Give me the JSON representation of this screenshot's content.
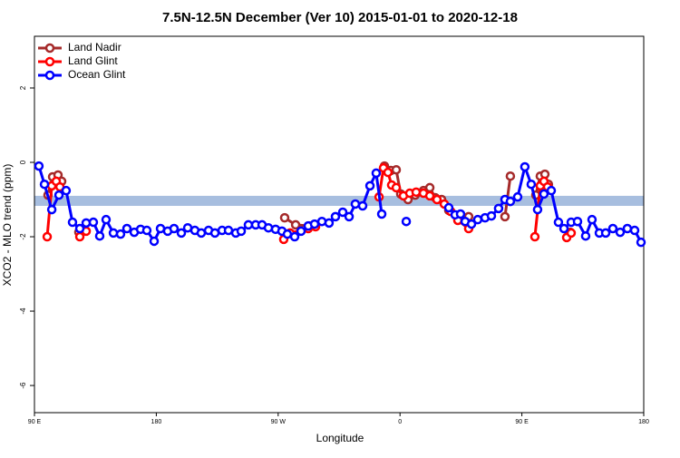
{
  "chart_data": {
    "type": "line",
    "title": "7.5N-12.5N December (Ver 10)   2015-01-01 to 2020-12-18",
    "x_label": "Longitude",
    "y_label": "XCO2 - MLO trend (ppm)",
    "xlim": [
      90,
      540
    ],
    "xticks": [
      {
        "value": 90,
        "label": "90 E"
      },
      {
        "value": 180,
        "label": "180"
      },
      {
        "value": 270,
        "label": "90 W"
      },
      {
        "value": 360,
        "label": "0"
      },
      {
        "value": 450,
        "label": "90 E"
      },
      {
        "value": 540,
        "label": "180"
      }
    ],
    "ylim": [
      -6.73,
      3.39
    ],
    "yticks": [
      2,
      0,
      -2,
      -4,
      -6
    ],
    "legend": "top-left",
    "band": {
      "ylim": [
        -1.17,
        -0.9
      ],
      "color": "#a7bedf"
    },
    "series": [
      {
        "name": "Land Nadir",
        "color": "#a52a2a",
        "x": [
          100.0,
          103.4,
          107.4,
          110.1,
          null,
          122.8,
          126.8,
          null,
          274.8,
          282.9,
          292.9,
          297.6,
          null,
          348.5,
          353.2,
          357.2,
          360.5,
          365.9,
          371.2,
          377.3,
          382.0,
          386.0,
          390.7,
          396.0,
          402.7,
          410.7,
          null,
          437.5,
          441.5,
          null,
          460.3,
          463.6,
          467.0,
          469.6,
          null,
          485.7
        ],
        "values": [
          -0.88,
          -0.39,
          -0.34,
          -0.51,
          null,
          -1.88,
          -1.8,
          null,
          -1.49,
          -1.68,
          -1.71,
          -1.68,
          null,
          -0.1,
          -0.22,
          -0.2,
          -0.85,
          -1.0,
          -0.88,
          -0.76,
          -0.68,
          -0.95,
          -1.0,
          -1.29,
          -1.51,
          -1.46,
          null,
          -1.46,
          -0.37,
          null,
          -0.88,
          -0.37,
          -0.32,
          -0.59,
          null,
          -1.88
        ]
      },
      {
        "name": "Land Glint",
        "color": "#ff0000",
        "x": [
          99.4,
          102.8,
          106.1,
          108.8,
          null,
          123.5,
          128.2,
          null,
          274.1,
          278.8,
          292.2,
          297.6,
          null,
          344.5,
          347.8,
          351.1,
          353.8,
          357.2,
          362.5,
          367.2,
          371.9,
          377.3,
          382.0,
          387.3,
          392.7,
          397.4,
          402.7,
          410.7,
          null,
          459.6,
          463.6,
          466.3,
          469.0,
          null,
          483.1,
          486.4
        ],
        "values": [
          -2.0,
          -0.63,
          -0.51,
          -0.66,
          null,
          -2.0,
          -1.85,
          null,
          -2.07,
          -1.9,
          -1.78,
          -1.73,
          null,
          -0.93,
          -0.15,
          -0.27,
          -0.61,
          -0.68,
          -0.9,
          -0.83,
          -0.8,
          -0.83,
          -0.9,
          -1.0,
          -1.12,
          -1.32,
          -1.56,
          -1.78,
          null,
          -2.0,
          -0.63,
          -0.51,
          -0.66,
          null,
          -2.02,
          -1.9
        ]
      },
      {
        "name": "Ocean Glint",
        "color": "#0000ff",
        "x": [
          93.3,
          97.4,
          102.8,
          108.1,
          113.4,
          118.1,
          123.5,
          128.2,
          133.5,
          138.2,
          142.9,
          148.3,
          153.6,
          158.3,
          163.7,
          168.4,
          173.0,
          178.4,
          183.1,
          188.4,
          193.1,
          198.5,
          203.2,
          208.5,
          213.2,
          218.6,
          223.3,
          228.6,
          233.3,
          238.7,
          242.7,
          248.0,
          253.4,
          258.1,
          262.8,
          268.1,
          272.8,
          276.8,
          282.2,
          286.9,
          292.2,
          296.9,
          302.3,
          307.6,
          312.3,
          317.7,
          322.4,
          327.0,
          332.4,
          337.8,
          342.4,
          346.5,
          null,
          364.6,
          null,
          396.0,
          400.7,
          404.7,
          408.1,
          412.8,
          417.4,
          422.8,
          427.5,
          432.8,
          437.5,
          441.5,
          446.9,
          452.2,
          456.9,
          461.6,
          466.3,
          471.7,
          477.0,
          481.1,
          486.4,
          491.1,
          497.1,
          501.8,
          507.2,
          511.9,
          517.2,
          522.6,
          527.9,
          533.3,
          538.0
        ],
        "values": [
          -0.1,
          -0.59,
          -1.27,
          -0.88,
          -0.76,
          -1.61,
          -1.78,
          -1.63,
          -1.61,
          -1.98,
          -1.54,
          -1.9,
          -1.93,
          -1.78,
          -1.88,
          -1.8,
          -1.83,
          -2.12,
          -1.78,
          -1.85,
          -1.78,
          -1.9,
          -1.76,
          -1.83,
          -1.9,
          -1.83,
          -1.9,
          -1.83,
          -1.83,
          -1.9,
          -1.85,
          -1.68,
          -1.68,
          -1.68,
          -1.76,
          -1.8,
          -1.85,
          -1.93,
          -2.0,
          -1.85,
          -1.71,
          -1.66,
          -1.59,
          -1.63,
          -1.46,
          -1.34,
          -1.46,
          -1.12,
          -1.17,
          -0.63,
          -0.29,
          -1.39,
          null,
          -1.59,
          null,
          -1.22,
          -1.41,
          -1.39,
          -1.59,
          -1.66,
          -1.54,
          -1.49,
          -1.44,
          -1.24,
          -1.0,
          -1.05,
          -0.93,
          -0.12,
          -0.59,
          -1.27,
          -0.85,
          -0.76,
          -1.61,
          -1.78,
          -1.61,
          -1.59,
          -1.98,
          -1.54,
          -1.9,
          -1.9,
          -1.78,
          -1.88,
          -1.78,
          -1.83,
          -2.15
        ]
      }
    ]
  }
}
